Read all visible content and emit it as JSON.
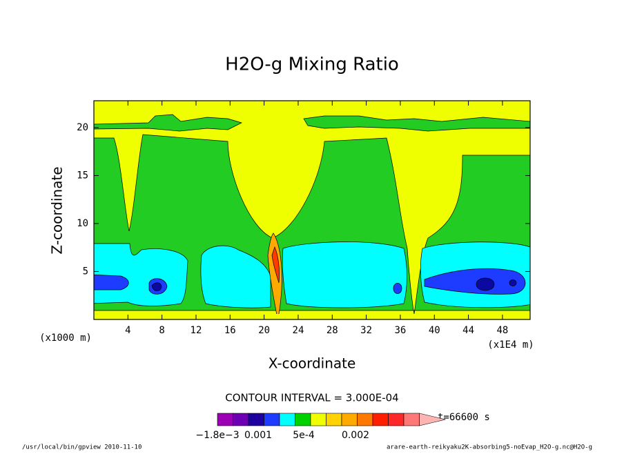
{
  "chart_data": {
    "type": "contour",
    "title": "H2O-g Mixing Ratio",
    "xlabel": "X-coordinate",
    "ylabel": "Z-coordinate",
    "x_unit": "(x1E4 m)",
    "y_unit": "(x1000 m)",
    "xlim": [
      0,
      51.25
    ],
    "ylim": [
      0,
      22.8
    ],
    "xticks": [
      4,
      8,
      12,
      16,
      20,
      24,
      28,
      32,
      36,
      40,
      44,
      48
    ],
    "yticks": [
      5,
      10,
      15,
      20
    ],
    "contour_interval": "CONTOUR INTERVAL = 3.000E-04",
    "colorbar": {
      "colors": [
        "#9b00b4",
        "#6e00b4",
        "#1e00a0",
        "#1e3cff",
        "#00ffff",
        "#00d200",
        "#f0ff00",
        "#ffd200",
        "#ffaa00",
        "#ff7800",
        "#ff1e00",
        "#ff2828",
        "#ff7878",
        "#ffb4b4"
      ],
      "labels": [
        "−1.8e−3",
        "0.001",
        "5e-4",
        "0.002"
      ]
    },
    "time_label": "t=66600 s",
    "footer_left": "/usr/local/bin/gpview  2010-11-10",
    "footer_right": "arare-earth-reikyaku2K-absorbing5-noEvap_H2O-g.nc@H2O-g"
  }
}
